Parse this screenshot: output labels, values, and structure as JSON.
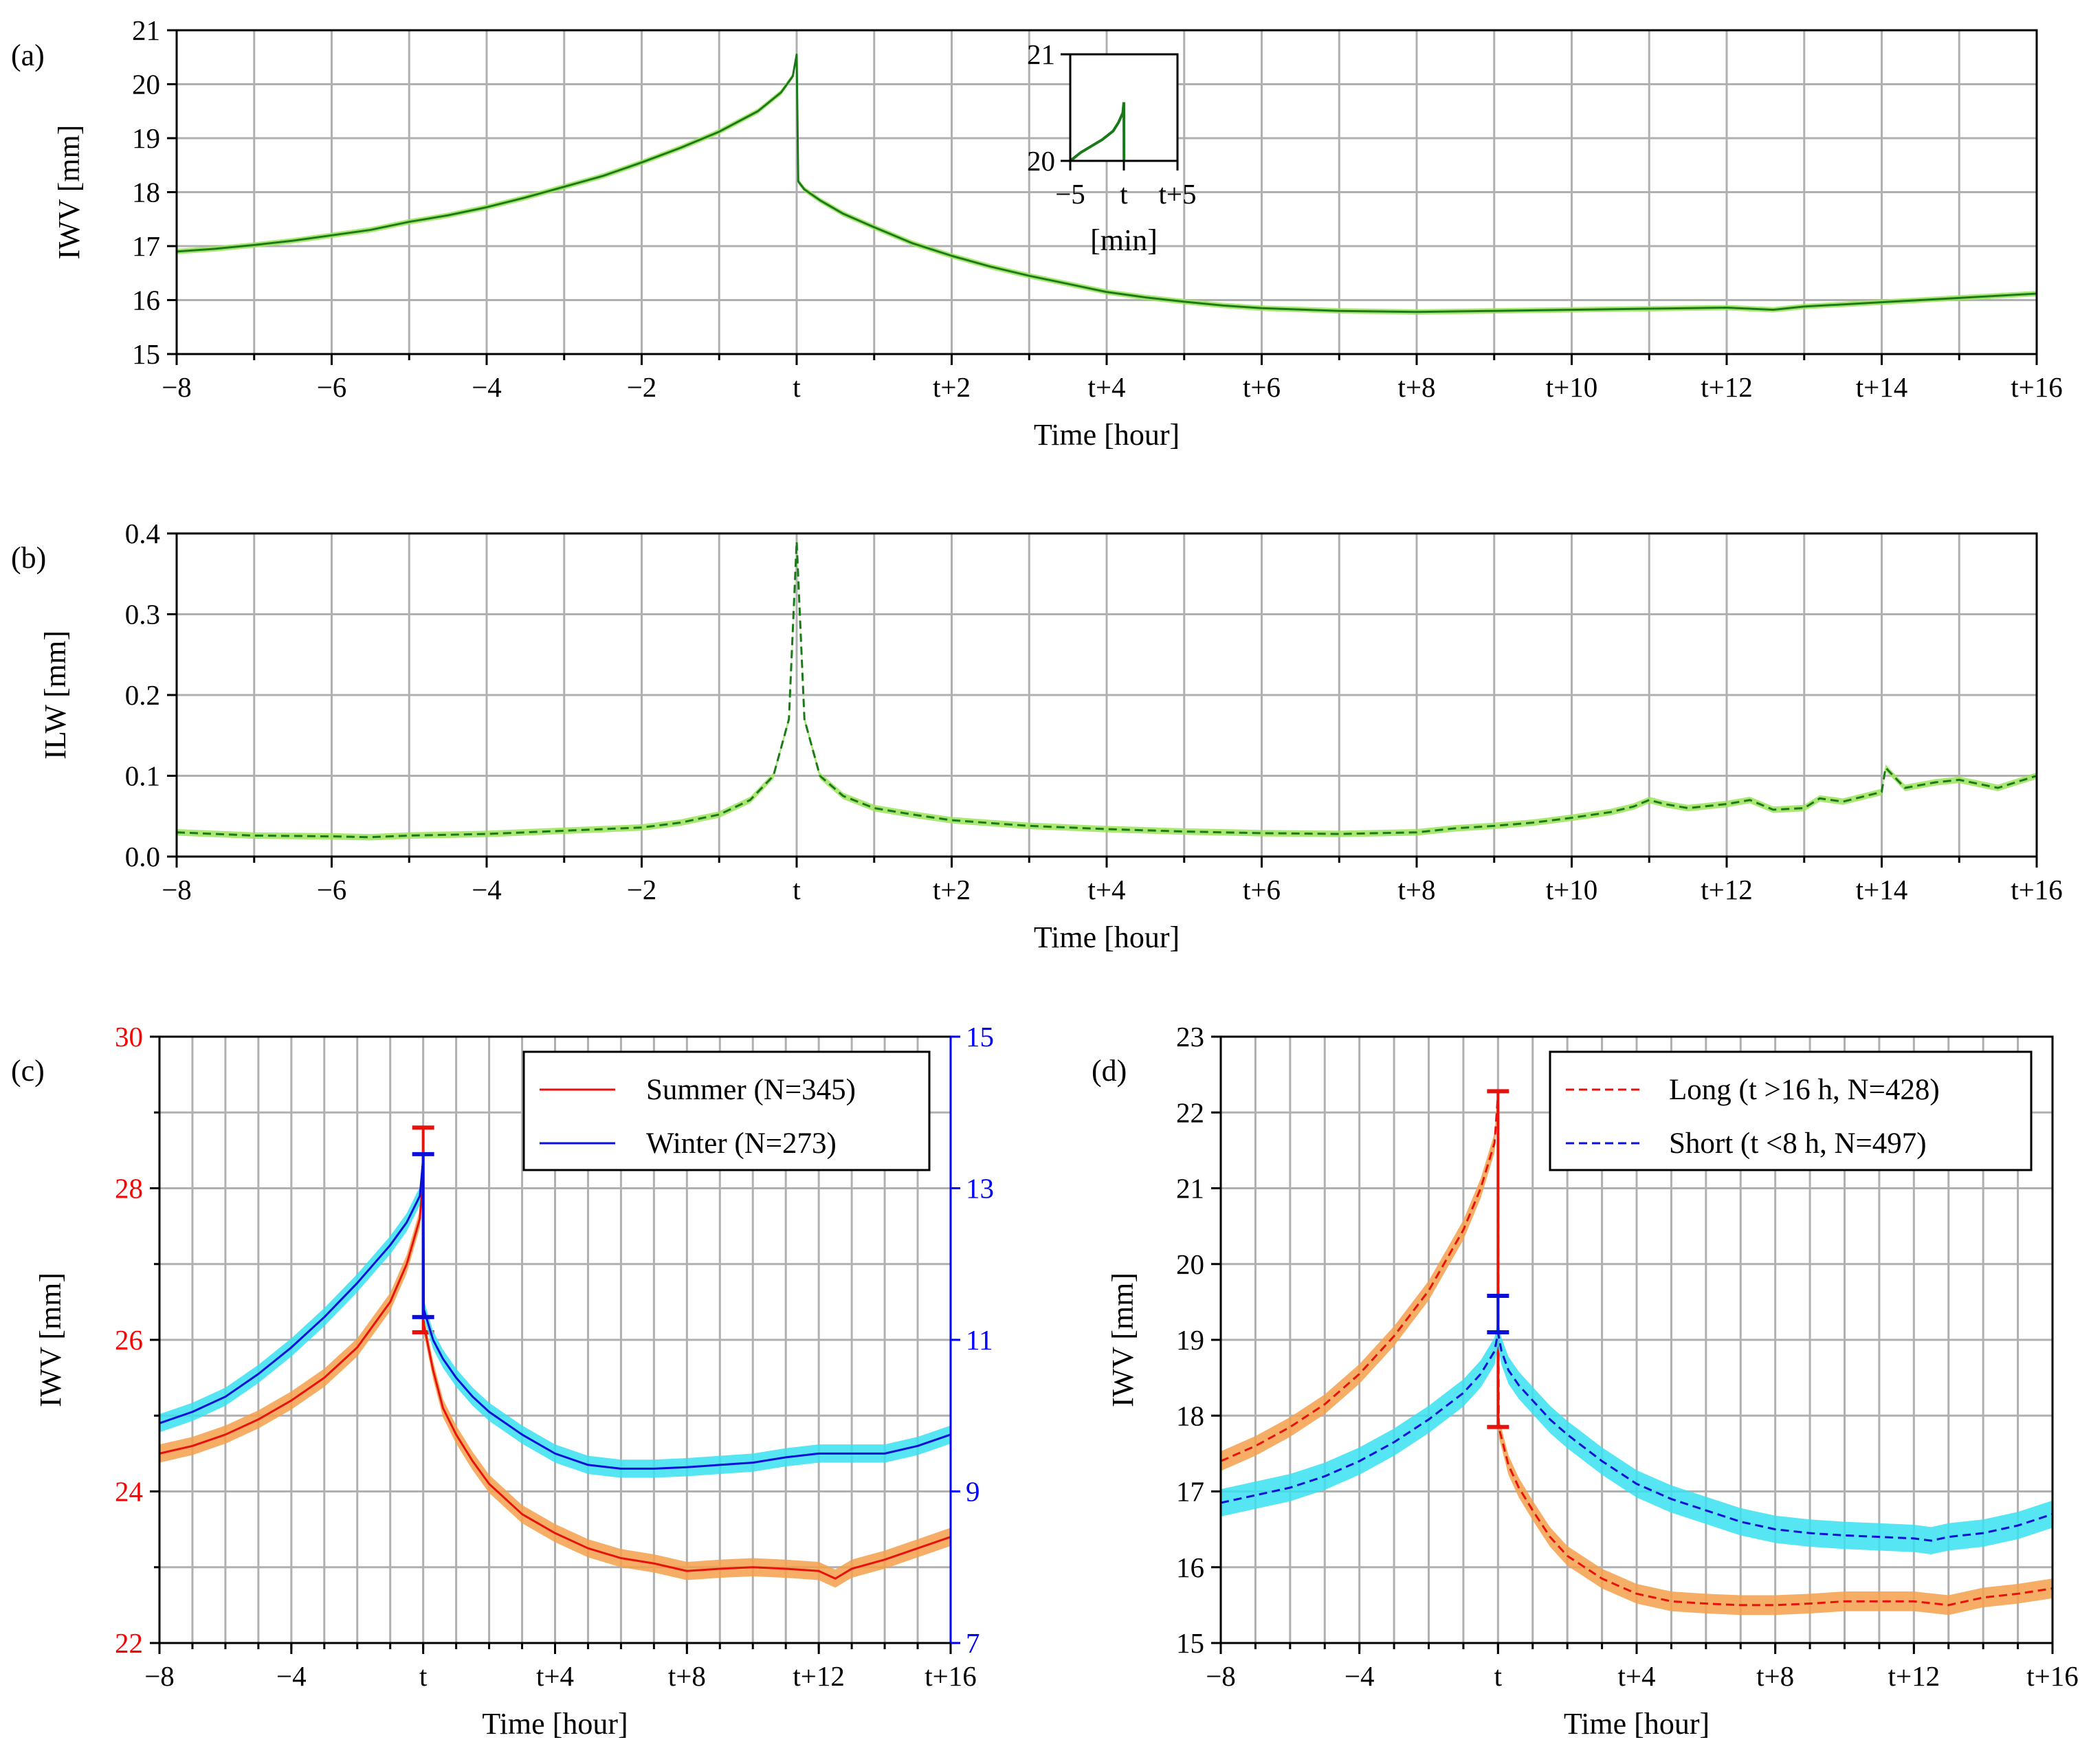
{
  "figure": {
    "panels": [
      {
        "id": "a",
        "label": "(a)"
      },
      {
        "id": "b",
        "label": "(b)"
      },
      {
        "id": "c",
        "label": "(c)"
      },
      {
        "id": "d",
        "label": "(d)"
      }
    ]
  },
  "chart_data": [
    {
      "panel": "(a)",
      "type": "line",
      "xlabel": "Time [hour]",
      "ylabel": "IWV [mm]",
      "xlim": [
        -8,
        16
      ],
      "ylim": [
        15,
        21
      ],
      "x_ticks": [
        -8,
        -6,
        -4,
        -2,
        0,
        2,
        4,
        6,
        8,
        10,
        12,
        14,
        16
      ],
      "x_tick_labels": [
        "−8",
        "−6",
        "−4",
        "−2",
        "t",
        "t+2",
        "t+4",
        "t+6",
        "t+8",
        "t+10",
        "t+12",
        "t+14",
        "t+16"
      ],
      "y_ticks": [
        15,
        16,
        17,
        18,
        19,
        20,
        21
      ],
      "y_tick_labels": [
        "15",
        "16",
        "17",
        "18",
        "19",
        "20",
        "21"
      ],
      "grid": true,
      "series": [
        {
          "name": "IWV",
          "color": "#1a7a1a",
          "band_color": "#9be35a",
          "style": "solid",
          "x": [
            -8,
            -7.5,
            -7,
            -6.5,
            -6,
            -5.5,
            -5,
            -4.5,
            -4,
            -3.5,
            -3,
            -2.5,
            -2,
            -1.5,
            -1,
            -0.5,
            -0.2,
            -0.05,
            0,
            0.02,
            0.1,
            0.3,
            0.6,
            1,
            1.5,
            2,
            2.5,
            3,
            3.5,
            4,
            4.5,
            5,
            5.5,
            6,
            7,
            8,
            9,
            10,
            11,
            12,
            12.6,
            13,
            14,
            15,
            16
          ],
          "y": [
            16.9,
            16.95,
            17.02,
            17.1,
            17.2,
            17.3,
            17.45,
            17.57,
            17.72,
            17.9,
            18.1,
            18.3,
            18.55,
            18.82,
            19.12,
            19.5,
            19.85,
            20.15,
            20.55,
            18.2,
            18.05,
            17.85,
            17.6,
            17.35,
            17.05,
            16.82,
            16.62,
            16.45,
            16.3,
            16.15,
            16.05,
            15.97,
            15.9,
            15.85,
            15.8,
            15.78,
            15.8,
            15.82,
            15.84,
            15.86,
            15.82,
            15.88,
            15.96,
            16.04,
            16.12
          ],
          "band": 0.05
        }
      ],
      "inset": {
        "xlabel": "[min]",
        "xlim": [
          -5,
          5
        ],
        "ylim": [
          20,
          21
        ],
        "x_ticks": [
          -5,
          0,
          5
        ],
        "x_tick_labels": [
          "−5",
          "t",
          "t+5"
        ],
        "y_ticks": [
          20,
          21
        ],
        "y_tick_labels": [
          "20",
          "21"
        ],
        "x": [
          -5,
          -4,
          -3,
          -2,
          -1,
          -0.5,
          -0.1,
          0,
          0.01
        ],
        "y": [
          20.0,
          20.08,
          20.14,
          20.2,
          20.28,
          20.36,
          20.45,
          20.55,
          20.0
        ]
      }
    },
    {
      "panel": "(b)",
      "type": "line",
      "xlabel": "Time [hour]",
      "ylabel": "ILW [mm]",
      "xlim": [
        -8,
        16
      ],
      "ylim": [
        0.0,
        0.4
      ],
      "x_ticks": [
        -8,
        -6,
        -4,
        -2,
        0,
        2,
        4,
        6,
        8,
        10,
        12,
        14,
        16
      ],
      "x_tick_labels": [
        "−8",
        "−6",
        "−4",
        "−2",
        "t",
        "t+2",
        "t+4",
        "t+6",
        "t+8",
        "t+10",
        "t+12",
        "t+14",
        "t+16"
      ],
      "y_ticks": [
        0.0,
        0.1,
        0.2,
        0.3,
        0.4
      ],
      "y_tick_labels": [
        "0.0",
        "0.1",
        "0.2",
        "0.3",
        "0.4"
      ],
      "grid": true,
      "series": [
        {
          "name": "ILW",
          "color": "#1a7a1a",
          "band_color": "#9be35a",
          "style": "dashed",
          "x": [
            -8,
            -7,
            -6,
            -5.5,
            -5,
            -4,
            -3,
            -2,
            -1.5,
            -1,
            -0.6,
            -0.3,
            -0.1,
            0,
            0.1,
            0.3,
            0.6,
            1,
            1.5,
            2,
            3,
            4,
            5,
            6,
            7,
            8,
            8.5,
            9,
            9.5,
            10,
            10.5,
            10.8,
            11,
            11.2,
            11.5,
            12,
            12.3,
            12.6,
            13,
            13.2,
            13.5,
            14,
            14.05,
            14.3,
            14.7,
            15,
            15.5,
            16
          ],
          "y": [
            0.03,
            0.026,
            0.025,
            0.024,
            0.026,
            0.028,
            0.032,
            0.036,
            0.042,
            0.052,
            0.07,
            0.1,
            0.17,
            0.39,
            0.17,
            0.1,
            0.075,
            0.06,
            0.052,
            0.045,
            0.038,
            0.034,
            0.031,
            0.029,
            0.028,
            0.03,
            0.035,
            0.038,
            0.042,
            0.048,
            0.055,
            0.062,
            0.07,
            0.065,
            0.06,
            0.065,
            0.07,
            0.058,
            0.06,
            0.072,
            0.068,
            0.08,
            0.11,
            0.085,
            0.092,
            0.095,
            0.085,
            0.1
          ],
          "band": 0.004
        }
      ]
    },
    {
      "panel": "(c)",
      "type": "line",
      "xlabel": "Time [hour]",
      "ylabel": "IWV [mm]",
      "xlim": [
        -8,
        16
      ],
      "ylim_left": [
        22,
        30
      ],
      "ylim_right": [
        7,
        15
      ],
      "x_ticks": [
        -8,
        -4,
        0,
        4,
        8,
        12,
        16
      ],
      "x_tick_labels": [
        "−8",
        "−4",
        "t",
        "t+4",
        "t+8",
        "t+12",
        "t+16"
      ],
      "y_ticks_left": [
        22,
        24,
        26,
        28,
        30
      ],
      "y_tick_labels_left": [
        "22",
        "24",
        "26",
        "28",
        "30"
      ],
      "y_ticks_right": [
        7,
        9,
        11,
        13,
        15
      ],
      "y_tick_labels_right": [
        "7",
        "9",
        "11",
        "13",
        "15"
      ],
      "left_axis_color": "#ff0000",
      "right_axis_color": "#0000ff",
      "grid": true,
      "legend": {
        "position": "top-right",
        "entries": [
          "Summer (N=345)",
          "Winter (N=273)"
        ]
      },
      "series": [
        {
          "name": "Summer (N=345)",
          "axis": "left",
          "color": "#e8120c",
          "band_color": "#f5a04c",
          "style": "solid",
          "x": [
            -8,
            -7,
            -6,
            -5,
            -4,
            -3,
            -2,
            -1,
            -0.5,
            -0.1,
            0,
            0.02,
            0.3,
            0.6,
            1,
            1.5,
            2,
            3,
            4,
            5,
            6,
            7,
            8,
            9,
            10,
            11,
            12,
            12.5,
            13,
            14,
            15,
            16
          ],
          "y": [
            24.5,
            24.6,
            24.75,
            24.95,
            25.2,
            25.5,
            25.9,
            26.5,
            27.0,
            27.6,
            28.3,
            26.2,
            25.6,
            25.1,
            24.75,
            24.4,
            24.1,
            23.7,
            23.45,
            23.25,
            23.12,
            23.05,
            22.95,
            22.98,
            23.0,
            22.98,
            22.95,
            22.85,
            22.98,
            23.1,
            23.25,
            23.4
          ],
          "band": 0.12,
          "errorbars": [
            {
              "x": 0,
              "low": 26.1,
              "high": 28.8
            }
          ]
        },
        {
          "name": "Winter (N=273)",
          "axis": "right",
          "color": "#0a10d8",
          "band_color": "#38e0f0",
          "style": "solid",
          "x": [
            -8,
            -7,
            -6,
            -5,
            -4,
            -3,
            -2,
            -1,
            -0.5,
            -0.1,
            0,
            0.02,
            0.3,
            0.6,
            1,
            1.5,
            2,
            3,
            4,
            5,
            6,
            7,
            8,
            9,
            10,
            11,
            12,
            13,
            14,
            15,
            16
          ],
          "y": [
            9.9,
            10.05,
            10.25,
            10.55,
            10.9,
            11.3,
            11.75,
            12.25,
            12.55,
            12.9,
            13.4,
            11.4,
            11.0,
            10.75,
            10.5,
            10.25,
            10.05,
            9.75,
            9.5,
            9.35,
            9.3,
            9.3,
            9.32,
            9.35,
            9.38,
            9.45,
            9.5,
            9.5,
            9.5,
            9.6,
            9.75
          ],
          "band": 0.12,
          "errorbars": [
            {
              "x": 0,
              "low": 11.3,
              "high": 13.45
            }
          ]
        }
      ]
    },
    {
      "panel": "(d)",
      "type": "line",
      "xlabel": "Time [hour]",
      "ylabel": "IWV [mm]",
      "xlim": [
        -8,
        16
      ],
      "ylim": [
        15,
        23
      ],
      "x_ticks": [
        -8,
        -4,
        0,
        4,
        8,
        12,
        16
      ],
      "x_tick_labels": [
        "−8",
        "−4",
        "t",
        "t+4",
        "t+8",
        "t+12",
        "t+16"
      ],
      "y_ticks": [
        15,
        16,
        17,
        18,
        19,
        20,
        21,
        22,
        23
      ],
      "y_tick_labels": [
        "15",
        "16",
        "17",
        "18",
        "19",
        "20",
        "21",
        "22",
        "23"
      ],
      "grid": true,
      "legend": {
        "position": "top-right",
        "entries": [
          "Long (t >16 h, N=428)",
          "Short (t <8 h, N=497)"
        ]
      },
      "series": [
        {
          "name": "Long (t >16 h, N=428)",
          "color": "#e8120c",
          "band_color": "#f5a04c",
          "style": "dashed",
          "x": [
            -8,
            -7,
            -6,
            -5,
            -4,
            -3,
            -2,
            -1,
            -0.5,
            -0.1,
            0,
            0.02,
            0.3,
            0.6,
            1,
            1.5,
            2,
            3,
            4,
            5,
            6,
            7,
            8,
            9,
            10,
            11,
            12,
            13,
            14,
            15,
            16
          ],
          "y": [
            17.4,
            17.6,
            17.85,
            18.15,
            18.55,
            19.05,
            19.65,
            20.45,
            21.0,
            21.6,
            22.25,
            17.85,
            17.35,
            17.05,
            16.75,
            16.4,
            16.15,
            15.85,
            15.65,
            15.55,
            15.52,
            15.5,
            15.5,
            15.52,
            15.55,
            15.55,
            15.55,
            15.5,
            15.6,
            15.65,
            15.72
          ],
          "band": 0.13,
          "errorbars": [
            {
              "x": 0,
              "low": 17.85,
              "high": 22.28
            }
          ]
        },
        {
          "name": "Short (t <8 h, N=497)",
          "color": "#0a10d8",
          "band_color": "#38e0f0",
          "style": "dashed",
          "x": [
            -8,
            -7,
            -6,
            -5,
            -4,
            -3,
            -2,
            -1,
            -0.5,
            -0.1,
            0,
            0.1,
            0.3,
            0.6,
            1,
            1.5,
            2,
            3,
            4,
            5,
            6,
            7,
            8,
            9,
            10,
            11,
            12,
            12.5,
            13,
            14,
            15,
            16
          ],
          "y": [
            16.85,
            16.95,
            17.05,
            17.2,
            17.4,
            17.65,
            17.95,
            18.3,
            18.55,
            18.85,
            19.1,
            18.85,
            18.6,
            18.4,
            18.2,
            17.95,
            17.75,
            17.4,
            17.1,
            16.9,
            16.75,
            16.6,
            16.5,
            16.45,
            16.42,
            16.4,
            16.38,
            16.35,
            16.4,
            16.45,
            16.55,
            16.7
          ],
          "band": 0.18,
          "errorbars": [
            {
              "x": 0,
              "low": 19.1,
              "high": 19.58
            }
          ]
        }
      ]
    }
  ]
}
